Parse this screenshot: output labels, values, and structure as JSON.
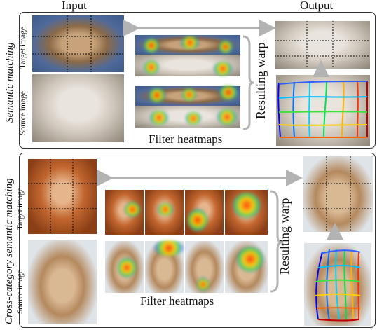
{
  "headers": {
    "input": "Input",
    "output": "Output"
  },
  "top_panel": {
    "side_label": "Semantic matching",
    "target_label": "Target image",
    "source_label": "Source image",
    "heatmap_caption": "Filter heatmaps",
    "warp_label": "Resulting warp"
  },
  "bottom_panel": {
    "side_label": "Cross-category semantic matching",
    "target_label": "Target image",
    "source_label": "Source image",
    "heatmap_caption": "Filter heatmaps",
    "warp_label": "Resulting warp"
  },
  "colors": {
    "arrow": "#b3b3b3",
    "border": "#333333",
    "grid_lines": [
      "#0000ff",
      "#00b4ff",
      "#00e050",
      "#c8e000",
      "#ffa000",
      "#ff2000",
      "#c00000"
    ]
  }
}
